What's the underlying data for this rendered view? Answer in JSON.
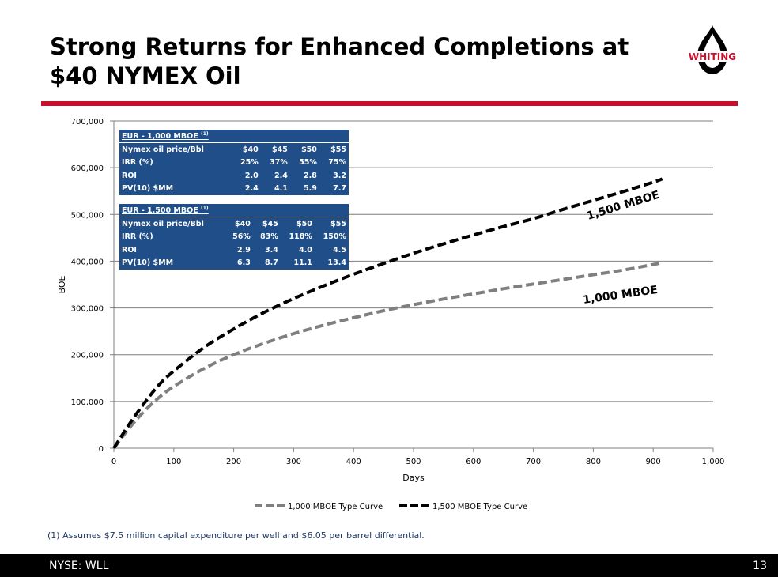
{
  "slide": {
    "title_line1": "Strong Returns for Enhanced Completions at",
    "title_line2": "$40 NYMEX Oil",
    "logo_text": "WHITING",
    "footnote": "(1) Assumes $7.5 million capital expenditure per well and $6.05 per barrel differential.",
    "footer_left": "NYSE: WLL",
    "page_number": "13",
    "accent_color": "#c8102e",
    "table_color": "#1f4e89"
  },
  "tables": [
    {
      "caption": "EUR - 1,000 MBOE",
      "caption_note": "(1)",
      "header_label": "Nymex oil price/Bbl",
      "prices": [
        "$40",
        "$45",
        "$50",
        "$55"
      ],
      "rows": [
        {
          "label": "IRR (%)",
          "values": [
            "25%",
            "37%",
            "55%",
            "75%"
          ]
        },
        {
          "label": "ROI",
          "values": [
            "2.0",
            "2.4",
            "2.8",
            "3.2"
          ]
        },
        {
          "label": "PV(10) $MM",
          "values": [
            "2.4",
            "4.1",
            "5.9",
            "7.7"
          ]
        }
      ]
    },
    {
      "caption": "EUR - 1,500 MBOE",
      "caption_note": "(1)",
      "header_label": "Nymex oil price/Bbl",
      "prices": [
        "$40",
        "$45",
        "$50",
        "$55"
      ],
      "rows": [
        {
          "label": "IRR (%)",
          "values": [
            "56%",
            "83%",
            "118%",
            "150%"
          ]
        },
        {
          "label": "ROI",
          "values": [
            "2.9",
            "3.4",
            "4.0",
            "4.5"
          ]
        },
        {
          "label": "PV(10) $MM",
          "values": [
            "6.3",
            "8.7",
            "11.1",
            "13.4"
          ]
        }
      ]
    }
  ],
  "chart_data": {
    "type": "line",
    "title": "",
    "xlabel": "Days",
    "ylabel": "BOE",
    "xlim": [
      0,
      1000
    ],
    "ylim": [
      0,
      700000
    ],
    "x_ticks": [
      0,
      100,
      200,
      300,
      400,
      500,
      600,
      700,
      800,
      900,
      1000
    ],
    "x_tick_labels": [
      "0",
      "100",
      "200",
      "300",
      "400",
      "500",
      "600",
      "700",
      "800",
      "900",
      "1,000"
    ],
    "y_ticks": [
      0,
      100000,
      200000,
      300000,
      400000,
      500000,
      600000,
      700000
    ],
    "y_tick_labels": [
      "0",
      "100,000",
      "200,000",
      "300,000",
      "400,000",
      "500,000",
      "600,000",
      "700,000"
    ],
    "grid": true,
    "legend_position": "bottom",
    "series": [
      {
        "name": "1,000 MBOE Type Curve",
        "label": "1,000 MBOE",
        "color": "#7f7f7f",
        "style": "dashed",
        "x": [
          0,
          25,
          50,
          75,
          100,
          150,
          200,
          250,
          300,
          350,
          400,
          450,
          500,
          550,
          600,
          650,
          700,
          750,
          800,
          850,
          900,
          915
        ],
        "y": [
          0,
          42000,
          78000,
          108000,
          132000,
          170000,
          200000,
          224000,
          245000,
          263000,
          279000,
          294000,
          307000,
          319000,
          330000,
          341000,
          351000,
          361000,
          371000,
          381000,
          393000,
          397000
        ]
      },
      {
        "name": "1,500 MBOE Type Curve",
        "label": "1,500 MBOE",
        "color": "#000000",
        "style": "dashed",
        "x": [
          0,
          25,
          50,
          75,
          100,
          150,
          200,
          250,
          300,
          350,
          400,
          450,
          500,
          550,
          600,
          650,
          700,
          750,
          800,
          850,
          900,
          915
        ],
        "y": [
          0,
          50000,
          95000,
          135000,
          165000,
          215000,
          255000,
          290000,
          320000,
          347000,
          372000,
          395000,
          417000,
          437000,
          456000,
          474000,
          491000,
          511000,
          530000,
          549000,
          569000,
          576000
        ]
      }
    ]
  }
}
